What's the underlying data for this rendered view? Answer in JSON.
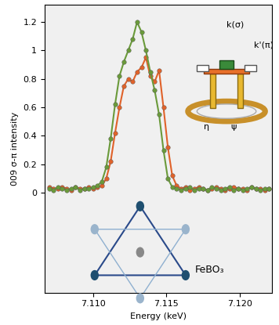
{
  "chart_data": {
    "type": "line",
    "x_label": "Energy (keV)",
    "y_label": "009 σ-π intensity",
    "x": [
      7.107,
      7.1073,
      7.1076,
      7.1079,
      7.1082,
      7.1085,
      7.1088,
      7.1091,
      7.1094,
      7.1097,
      7.11,
      7.1103,
      7.1106,
      7.1109,
      7.1112,
      7.1115,
      7.1118,
      7.1121,
      7.1124,
      7.1127,
      7.113,
      7.1133,
      7.1136,
      7.1139,
      7.1142,
      7.1145,
      7.1148,
      7.1151,
      7.1154,
      7.1157,
      7.116,
      7.1163,
      7.1166,
      7.1169,
      7.1172,
      7.1175,
      7.1178,
      7.1181,
      7.1184,
      7.1187,
      7.119,
      7.1193,
      7.1196,
      7.1199,
      7.1202,
      7.1205,
      7.1208,
      7.1211,
      7.1214,
      7.1217,
      7.122
    ],
    "series": [
      {
        "color": "#e0622a",
        "marker": "o",
        "line_style": "solid",
        "values": [
          0.04,
          0.03,
          0.03,
          0.04,
          0.03,
          0.02,
          0.04,
          0.03,
          0.03,
          0.04,
          0.03,
          0.04,
          0.05,
          0.1,
          0.22,
          0.42,
          0.6,
          0.75,
          0.8,
          0.78,
          0.85,
          0.88,
          0.95,
          0.82,
          0.78,
          0.86,
          0.6,
          0.32,
          0.12,
          0.05,
          0.03,
          0.04,
          0.02,
          0.03,
          0.04,
          0.03,
          0.02,
          0.03,
          0.04,
          0.03,
          0.02,
          0.03,
          0.04,
          0.03,
          0.03,
          0.02,
          0.04,
          0.03,
          0.03,
          0.02,
          0.03
        ]
      },
      {
        "color": "#6a9a3a",
        "marker": "o",
        "line_style": "solid",
        "values": [
          0.03,
          0.02,
          0.04,
          0.03,
          0.02,
          0.03,
          0.04,
          0.02,
          0.03,
          0.03,
          0.04,
          0.05,
          0.08,
          0.18,
          0.38,
          0.62,
          0.82,
          0.92,
          1.0,
          1.08,
          1.2,
          1.13,
          1.0,
          0.85,
          0.72,
          0.55,
          0.3,
          0.1,
          0.04,
          0.03,
          0.02,
          0.03,
          0.04,
          0.02,
          0.03,
          0.03,
          0.02,
          0.04,
          0.03,
          0.02,
          0.03,
          0.04,
          0.02,
          0.03,
          0.02,
          0.03,
          0.04,
          0.03,
          0.02,
          0.03,
          0.03
        ]
      }
    ],
    "xlim": [
      7.1067,
      7.1222
    ],
    "xticks": [
      {
        "value": 7.11,
        "label": "7.110"
      },
      7.115,
      {
        "value": 7.12,
        "label": "7.120"
      }
    ],
    "ylim": [
      -0.7,
      1.32
    ],
    "yticks": [
      0,
      0.2,
      0.4,
      0.6,
      0.8,
      1,
      1.2
    ],
    "annotations": [
      "k(σ)",
      "k'(π)",
      "η",
      "ψ",
      "FeBO₃"
    ]
  }
}
